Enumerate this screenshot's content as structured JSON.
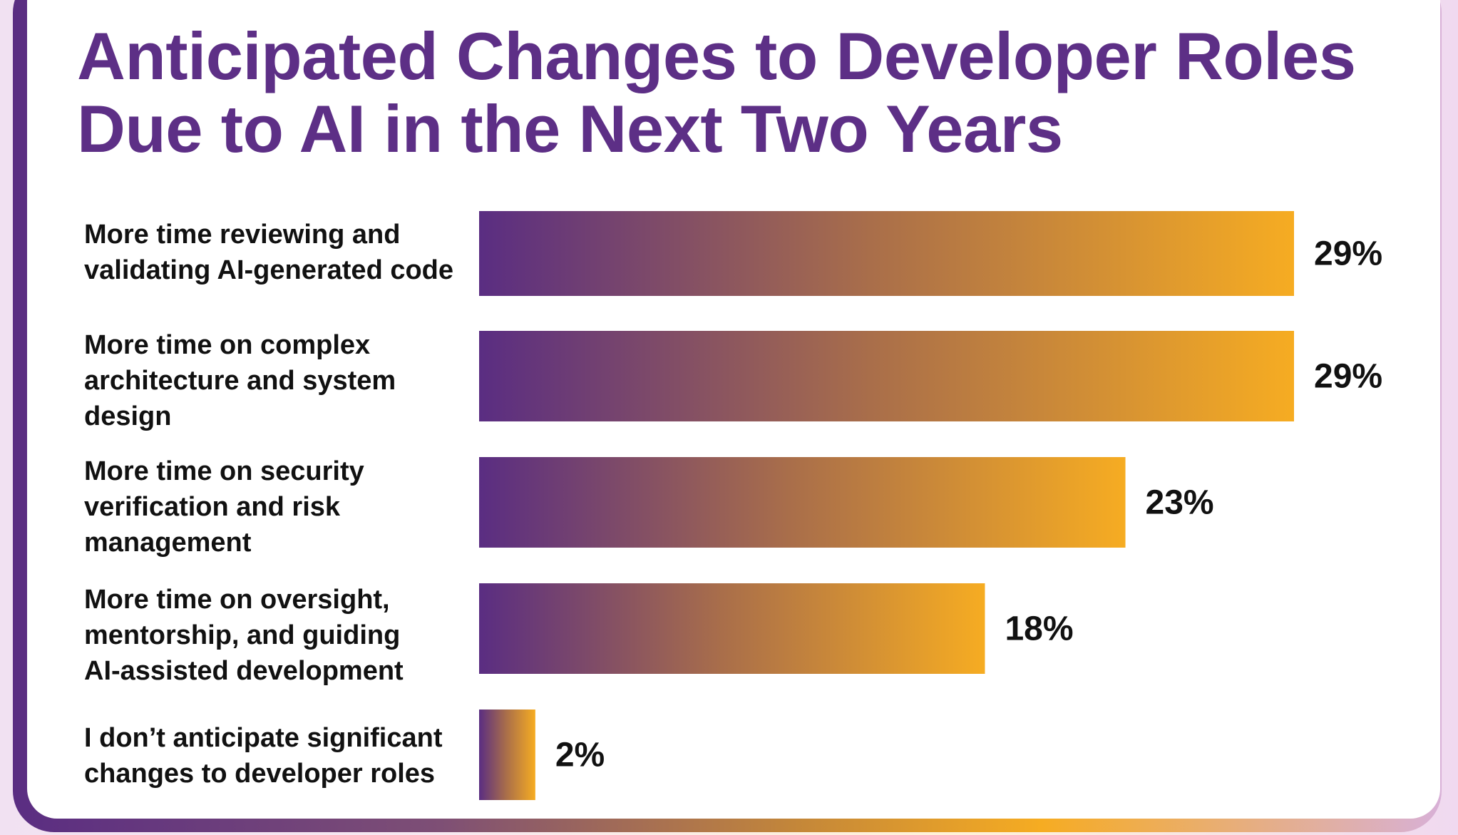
{
  "title": {
    "line1": "Anticipated Changes to Developer Roles",
    "line2": "Due to AI in the Next Two Years"
  },
  "colors": {
    "title": "#5d2f86",
    "bar_start": "#5a2d82",
    "bar_end": "#f6ac22",
    "text": "#111111"
  },
  "chart_data": {
    "type": "bar",
    "orientation": "horizontal",
    "title": "Anticipated Changes to Developer Roles Due to AI in the Next Two Years",
    "xlabel": "",
    "ylabel": "",
    "xlim": [
      0,
      29
    ],
    "grid": false,
    "legend": "none",
    "categories": [
      "More time reviewing and validating AI-generated code",
      "More time on complex architecture and system design",
      "More time on security verification and risk management",
      "More time on oversight, mentorship, and guiding AI-assisted development",
      "I don’t anticipate significant changes to developer roles"
    ],
    "values": [
      29,
      29,
      23,
      18,
      2
    ],
    "value_labels": [
      "29%",
      "29%",
      "23%",
      "18%",
      "2%"
    ]
  },
  "labels": [
    [
      "More time reviewing and",
      "validating AI-generated code"
    ],
    [
      "More time on complex",
      "architecture and system",
      "design"
    ],
    [
      "More time on security",
      "verification and risk",
      "management"
    ],
    [
      "More time on oversight,",
      "mentorship, and guiding",
      "AI-assisted development"
    ],
    [
      "I don’t anticipate significant",
      "changes to developer roles"
    ]
  ]
}
